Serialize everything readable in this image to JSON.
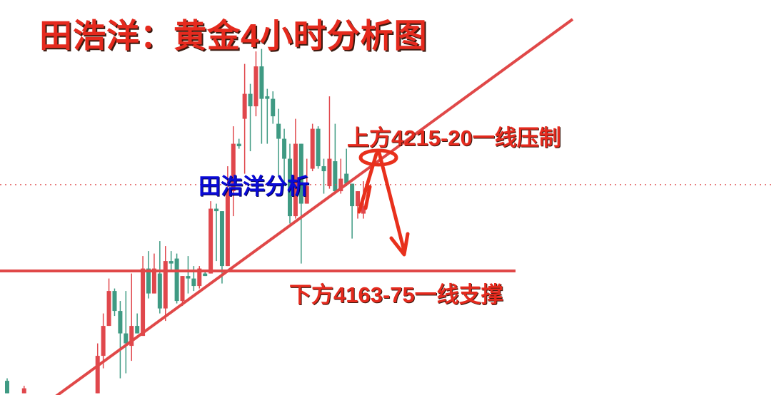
{
  "title": "田浩洋：黄金4小时分析图",
  "watermark": "田浩洋分析",
  "annotations": {
    "resistance": "上方4215-20一线压制",
    "support": "下方4163-75一线支撑"
  },
  "colors": {
    "up": "#e0474c",
    "down": "#3f9a83",
    "annotation": "#e52a1e",
    "watermark": "#0a0ad8",
    "lines": "#e04848"
  },
  "chart_data": {
    "type": "candlestick",
    "title": "田浩洋：黄金4小时分析图",
    "timeframe": "4H",
    "grid": false,
    "levels": {
      "resistance": [
        4215,
        4220
      ],
      "support": [
        4163,
        4175
      ],
      "current_price_dotted": 4204
    },
    "trendline": "rising support line",
    "bars": [
      {
        "i": 0,
        "o": 4126,
        "h": 4127,
        "l": 4121,
        "c": 4121
      },
      {
        "i": 3,
        "o": 4121,
        "h": 4124,
        "l": 4121,
        "c": 4123
      },
      {
        "i": 16,
        "o": 4121,
        "h": 4141,
        "l": 4121,
        "c": 4136
      },
      {
        "i": 17,
        "o": 4136,
        "h": 4153,
        "l": 4131,
        "c": 4148
      },
      {
        "i": 18,
        "o": 4148,
        "h": 4167,
        "l": 4148,
        "c": 4162
      },
      {
        "i": 19,
        "o": 4162,
        "h": 4163,
        "l": 4152,
        "c": 4154
      },
      {
        "i": 20,
        "o": 4154,
        "h": 4158,
        "l": 4127,
        "c": 4145
      },
      {
        "i": 21,
        "o": 4145,
        "h": 4162,
        "l": 4129,
        "c": 4141
      },
      {
        "i": 22,
        "o": 4140,
        "h": 4169,
        "l": 4134,
        "c": 4148
      },
      {
        "i": 23,
        "o": 4148,
        "h": 4153,
        "l": 4145,
        "c": 4145
      },
      {
        "i": 24,
        "o": 4144,
        "h": 4176,
        "l": 4144,
        "c": 4171
      },
      {
        "i": 25,
        "o": 4171,
        "h": 4178,
        "l": 4159,
        "c": 4161
      },
      {
        "i": 26,
        "o": 4161,
        "h": 4177,
        "l": 4161,
        "c": 4171
      },
      {
        "i": 27,
        "o": 4169,
        "h": 4182,
        "l": 4153,
        "c": 4155
      },
      {
        "i": 28,
        "o": 4155,
        "h": 4180,
        "l": 4150,
        "c": 4174
      },
      {
        "i": 29,
        "o": 4174,
        "h": 4178,
        "l": 4170,
        "c": 4173
      },
      {
        "i": 30,
        "o": 4175,
        "h": 4177,
        "l": 4157,
        "c": 4158
      },
      {
        "i": 31,
        "o": 4158,
        "h": 4168,
        "l": 4156,
        "c": 4168
      },
      {
        "i": 32,
        "o": 4168,
        "h": 4176,
        "l": 4161,
        "c": 4167
      },
      {
        "i": 33,
        "o": 4167,
        "h": 4172,
        "l": 4162,
        "c": 4164
      },
      {
        "i": 34,
        "o": 4164,
        "h": 4172,
        "l": 4163,
        "c": 4171
      },
      {
        "i": 35,
        "o": 4169,
        "h": 4170,
        "l": 4168,
        "c": 4168
      },
      {
        "i": 36,
        "o": 4169,
        "h": 4198,
        "l": 4169,
        "c": 4195
      },
      {
        "i": 37,
        "o": 4195,
        "h": 4197,
        "l": 4174,
        "c": 4194
      },
      {
        "i": 38,
        "o": 4194,
        "h": 4194,
        "l": 4165,
        "c": 4172
      },
      {
        "i": 39,
        "o": 4172,
        "h": 4212,
        "l": 4172,
        "c": 4203
      },
      {
        "i": 40,
        "o": 4202,
        "h": 4228,
        "l": 4192,
        "c": 4221
      },
      {
        "i": 41,
        "o": 4221,
        "h": 4223,
        "l": 4219,
        "c": 4220
      },
      {
        "i": 42,
        "o": 4231,
        "h": 4253,
        "l": 4209,
        "c": 4241
      },
      {
        "i": 43,
        "o": 4241,
        "h": 4245,
        "l": 4218,
        "c": 4236
      },
      {
        "i": 44,
        "o": 4236,
        "h": 4258,
        "l": 4232,
        "c": 4252
      },
      {
        "i": 45,
        "o": 4252,
        "h": 4259,
        "l": 4221,
        "c": 4239
      },
      {
        "i": 46,
        "o": 4240,
        "h": 4243,
        "l": 4221,
        "c": 4239
      },
      {
        "i": 47,
        "o": 4239,
        "h": 4242,
        "l": 4229,
        "c": 4232
      },
      {
        "i": 48,
        "o": 4229,
        "h": 4235,
        "l": 4208,
        "c": 4223
      },
      {
        "i": 49,
        "o": 4223,
        "h": 4227,
        "l": 4204,
        "c": 4215
      },
      {
        "i": 50,
        "o": 4215,
        "h": 4221,
        "l": 4189,
        "c": 4192
      },
      {
        "i": 51,
        "o": 4192,
        "h": 4231,
        "l": 4191,
        "c": 4221
      },
      {
        "i": 52,
        "o": 4221,
        "h": 4221,
        "l": 4173,
        "c": 4197
      },
      {
        "i": 53,
        "o": 4197,
        "h": 4215,
        "l": 4197,
        "c": 4204
      },
      {
        "i": 54,
        "o": 4211,
        "h": 4229,
        "l": 4210,
        "c": 4227
      },
      {
        "i": 55,
        "o": 4227,
        "h": 4228,
        "l": 4211,
        "c": 4212
      },
      {
        "i": 56,
        "o": 4212,
        "h": 4215,
        "l": 4201,
        "c": 4210
      },
      {
        "i": 57,
        "o": 4204,
        "h": 4240,
        "l": 4203,
        "c": 4215
      },
      {
        "i": 58,
        "o": 4214,
        "h": 4229,
        "l": 4201,
        "c": 4202
      },
      {
        "i": 59,
        "o": 4202,
        "h": 4215,
        "l": 4201,
        "c": 4207
      },
      {
        "i": 60,
        "o": 4209,
        "h": 4219,
        "l": 4204,
        "c": 4205
      },
      {
        "i": 61,
        "o": 4205,
        "h": 4205,
        "l": 4183,
        "c": 4196
      },
      {
        "i": 62,
        "o": 4196,
        "h": 4202,
        "l": 4191,
        "c": 4202
      },
      {
        "i": 63,
        "o": 4193,
        "h": 4206,
        "l": 4191,
        "c": 4196
      }
    ]
  }
}
